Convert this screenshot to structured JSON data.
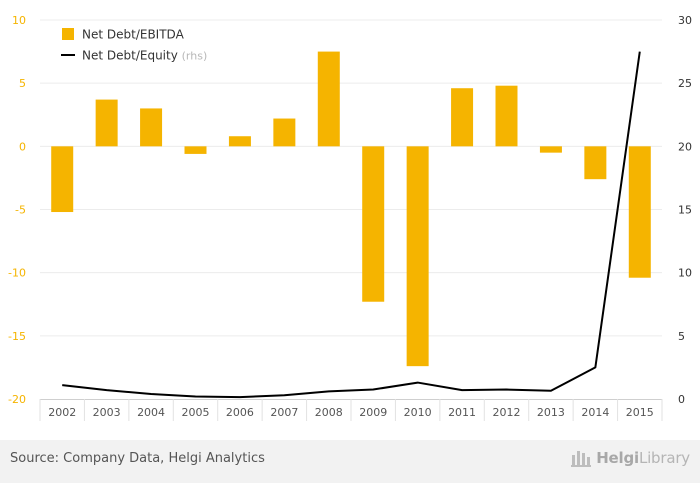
{
  "chart_data": {
    "type": "bar+line",
    "categories": [
      "2002",
      "2003",
      "2004",
      "2005",
      "2006",
      "2007",
      "2008",
      "2009",
      "2010",
      "2011",
      "2012",
      "2013",
      "2014",
      "2015"
    ],
    "series": [
      {
        "name": "Net Debt/EBITDA",
        "kind": "bar",
        "axis": "left",
        "color": "#f5b400",
        "values": [
          -5.2,
          3.7,
          3.0,
          -0.6,
          0.8,
          2.2,
          7.5,
          -12.3,
          -17.4,
          4.6,
          4.8,
          -0.5,
          -2.6,
          -10.4
        ]
      },
      {
        "name": "Net Debt/Equity",
        "kind": "line",
        "axis": "right",
        "legend_suffix": "(rhs)",
        "color": "#000000",
        "values": [
          1.1,
          0.7,
          0.4,
          0.2,
          0.15,
          0.3,
          0.6,
          0.75,
          1.3,
          0.7,
          0.75,
          0.65,
          2.5,
          27.5
        ]
      }
    ],
    "y_left": {
      "ticks": [
        10,
        5,
        0,
        -5,
        -10,
        -15,
        -20
      ],
      "ylim": [
        -20,
        10
      ],
      "tick_color": "#f5b400"
    },
    "y_right": {
      "ticks": [
        30,
        25,
        20,
        15,
        10,
        5,
        0
      ],
      "ylim": [
        0,
        30
      ],
      "tick_color": "#333333"
    },
    "grid": true,
    "legend_position": "top-left"
  },
  "footer": {
    "source": "Source: Company Data, Helgi Analytics",
    "brand_part1": "Helgi",
    "brand_part2": "Library"
  }
}
